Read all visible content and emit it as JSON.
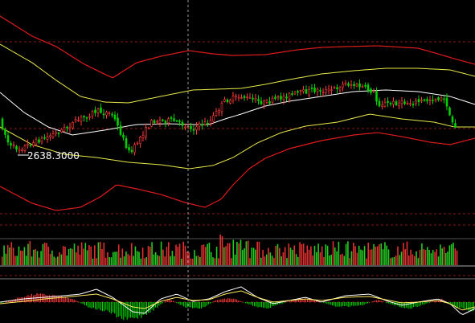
{
  "chart_data": [
    {
      "type": "candlestick",
      "panel": "price",
      "overlays": [
        "bollinger-inner-yellow",
        "bollinger-outer-red",
        "middle-band-white"
      ],
      "annotation": "2638.3000",
      "colors": {
        "up": "#ff3b3b",
        "down": "#00d000",
        "inner_band": "#e8e84a",
        "outer_band": "#e01b1b",
        "mid_band": "#ffffff",
        "crosshair": "#9a9a9a",
        "grid": "#8a1a1a"
      },
      "grid": true,
      "crosshair": true
    },
    {
      "type": "bar",
      "panel": "volume",
      "colors": {
        "up": "#e03030",
        "down": "#22cc22"
      }
    },
    {
      "type": "line",
      "panel": "macd",
      "series_colors": {
        "dif": "#ffffff",
        "dea": "#ffe95c",
        "hist_pos": "#ff3b3b",
        "hist_neg": "#00d000"
      }
    }
  ]
}
